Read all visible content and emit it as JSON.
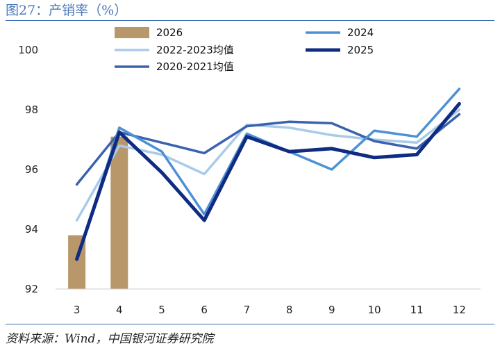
{
  "figure": {
    "title": "图27：产销率（%）",
    "source": "资料来源：Wind，中国银河证券研究院"
  },
  "chart_data": {
    "type": "line",
    "categories": [
      "3",
      "4",
      "5",
      "6",
      "7",
      "8",
      "9",
      "10",
      "11",
      "12"
    ],
    "ylim": [
      92,
      100
    ],
    "yticks": [
      "92",
      "94",
      "96",
      "98",
      "100"
    ],
    "grid": false,
    "legend_position": "top",
    "bar_series": {
      "name": "2026",
      "color": "#b8976a",
      "values": [
        93.8,
        97.1,
        null,
        null,
        null,
        null,
        null,
        null,
        null,
        null
      ]
    },
    "series": [
      {
        "name": "2022-2023均值",
        "color": "#a9cbe9",
        "width": 3.5,
        "values": [
          94.3,
          96.8,
          96.5,
          95.85,
          97.5,
          97.4,
          97.15,
          97.0,
          96.9,
          98.0
        ]
      },
      {
        "name": "2020-2021均值",
        "color": "#3a62ad",
        "width": 3.5,
        "values": [
          95.5,
          97.25,
          96.9,
          96.55,
          97.45,
          97.6,
          97.55,
          96.95,
          96.7,
          97.85
        ]
      },
      {
        "name": "2024",
        "color": "#4d91d4",
        "width": 3.5,
        "values": [
          93.0,
          97.4,
          96.6,
          94.5,
          97.2,
          96.6,
          96.0,
          97.3,
          97.1,
          98.7
        ]
      },
      {
        "name": "2025",
        "color": "#0f2b82",
        "width": 5,
        "values": [
          93.0,
          97.25,
          95.9,
          94.3,
          97.1,
          96.6,
          96.7,
          96.4,
          96.5,
          98.2
        ]
      }
    ]
  },
  "legend": {
    "items": [
      {
        "label": "2026",
        "kind": "bar",
        "color": "#b8976a",
        "col": 0,
        "row": 0
      },
      {
        "label": "2024",
        "kind": "line",
        "color": "#4d91d4",
        "col": 1,
        "row": 0
      },
      {
        "label": "2022-2023均值",
        "kind": "line",
        "color": "#a9cbe9",
        "col": 0,
        "row": 1
      },
      {
        "label": "2025",
        "kind": "line",
        "color": "#0f2b82",
        "col": 1,
        "row": 1
      },
      {
        "label": "2020-2021均值",
        "kind": "line",
        "color": "#3a62ad",
        "col": 0,
        "row": 2
      }
    ]
  }
}
